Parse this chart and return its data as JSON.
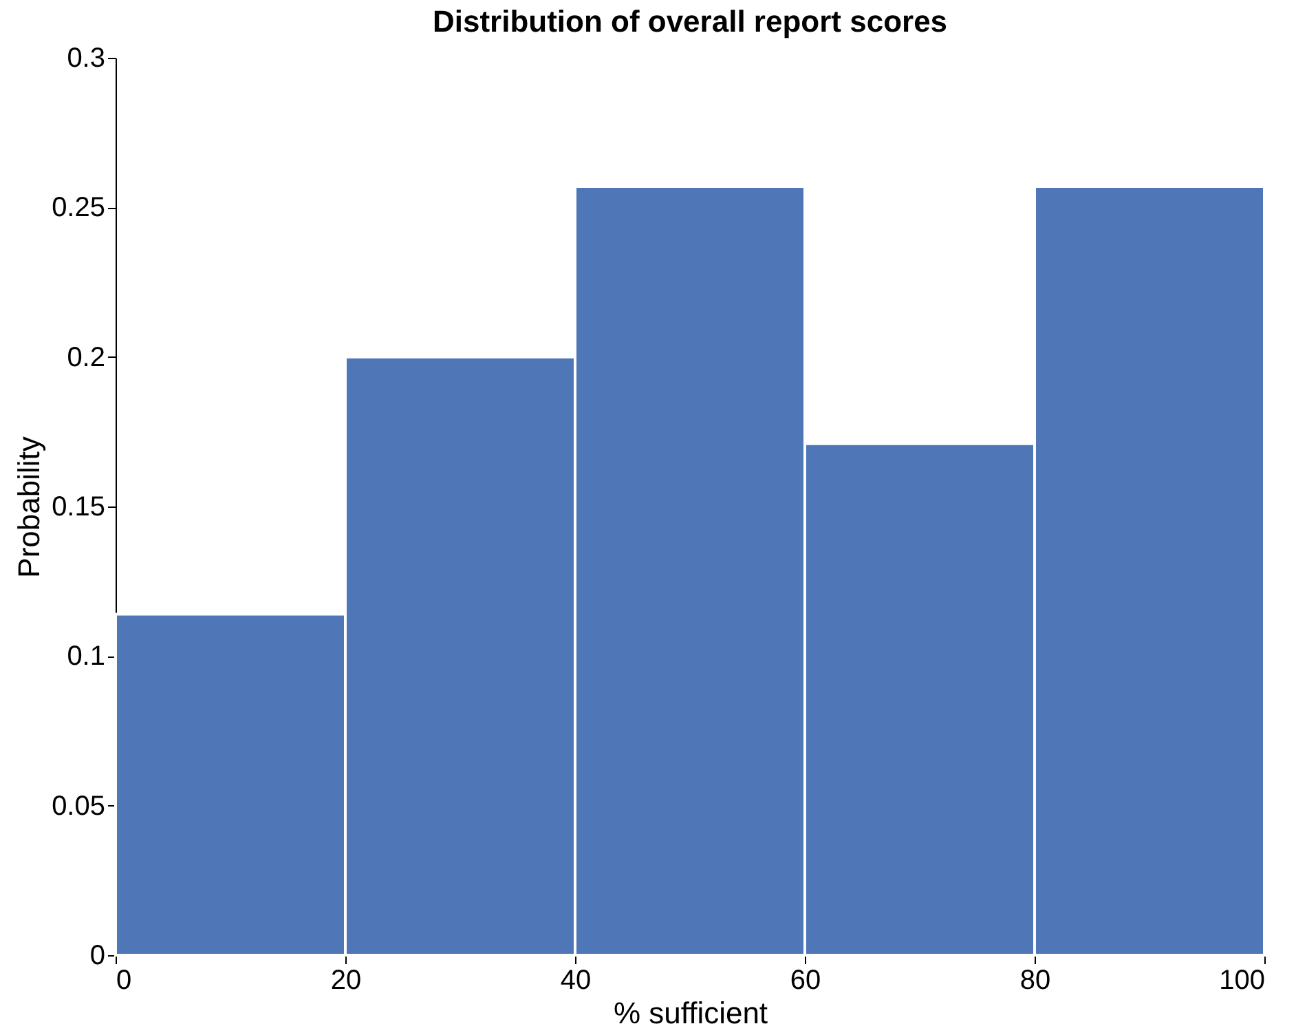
{
  "chart_data": {
    "type": "histogram",
    "title": "Distribution of overall report scores",
    "xlabel": "% sufficient",
    "ylabel": "Probability",
    "bins": [
      0,
      20,
      40,
      60,
      80,
      100
    ],
    "values": [
      0.114,
      0.2,
      0.257,
      0.171,
      0.257
    ],
    "color": "#4f77b8",
    "xlim": [
      0,
      100
    ],
    "xticks": [
      0,
      20,
      40,
      60,
      80,
      100
    ],
    "ylim": [
      0,
      0.3
    ],
    "yticks": [
      0,
      0.05,
      0.1,
      0.15,
      0.2,
      0.25,
      0.3
    ],
    "grid": false
  }
}
